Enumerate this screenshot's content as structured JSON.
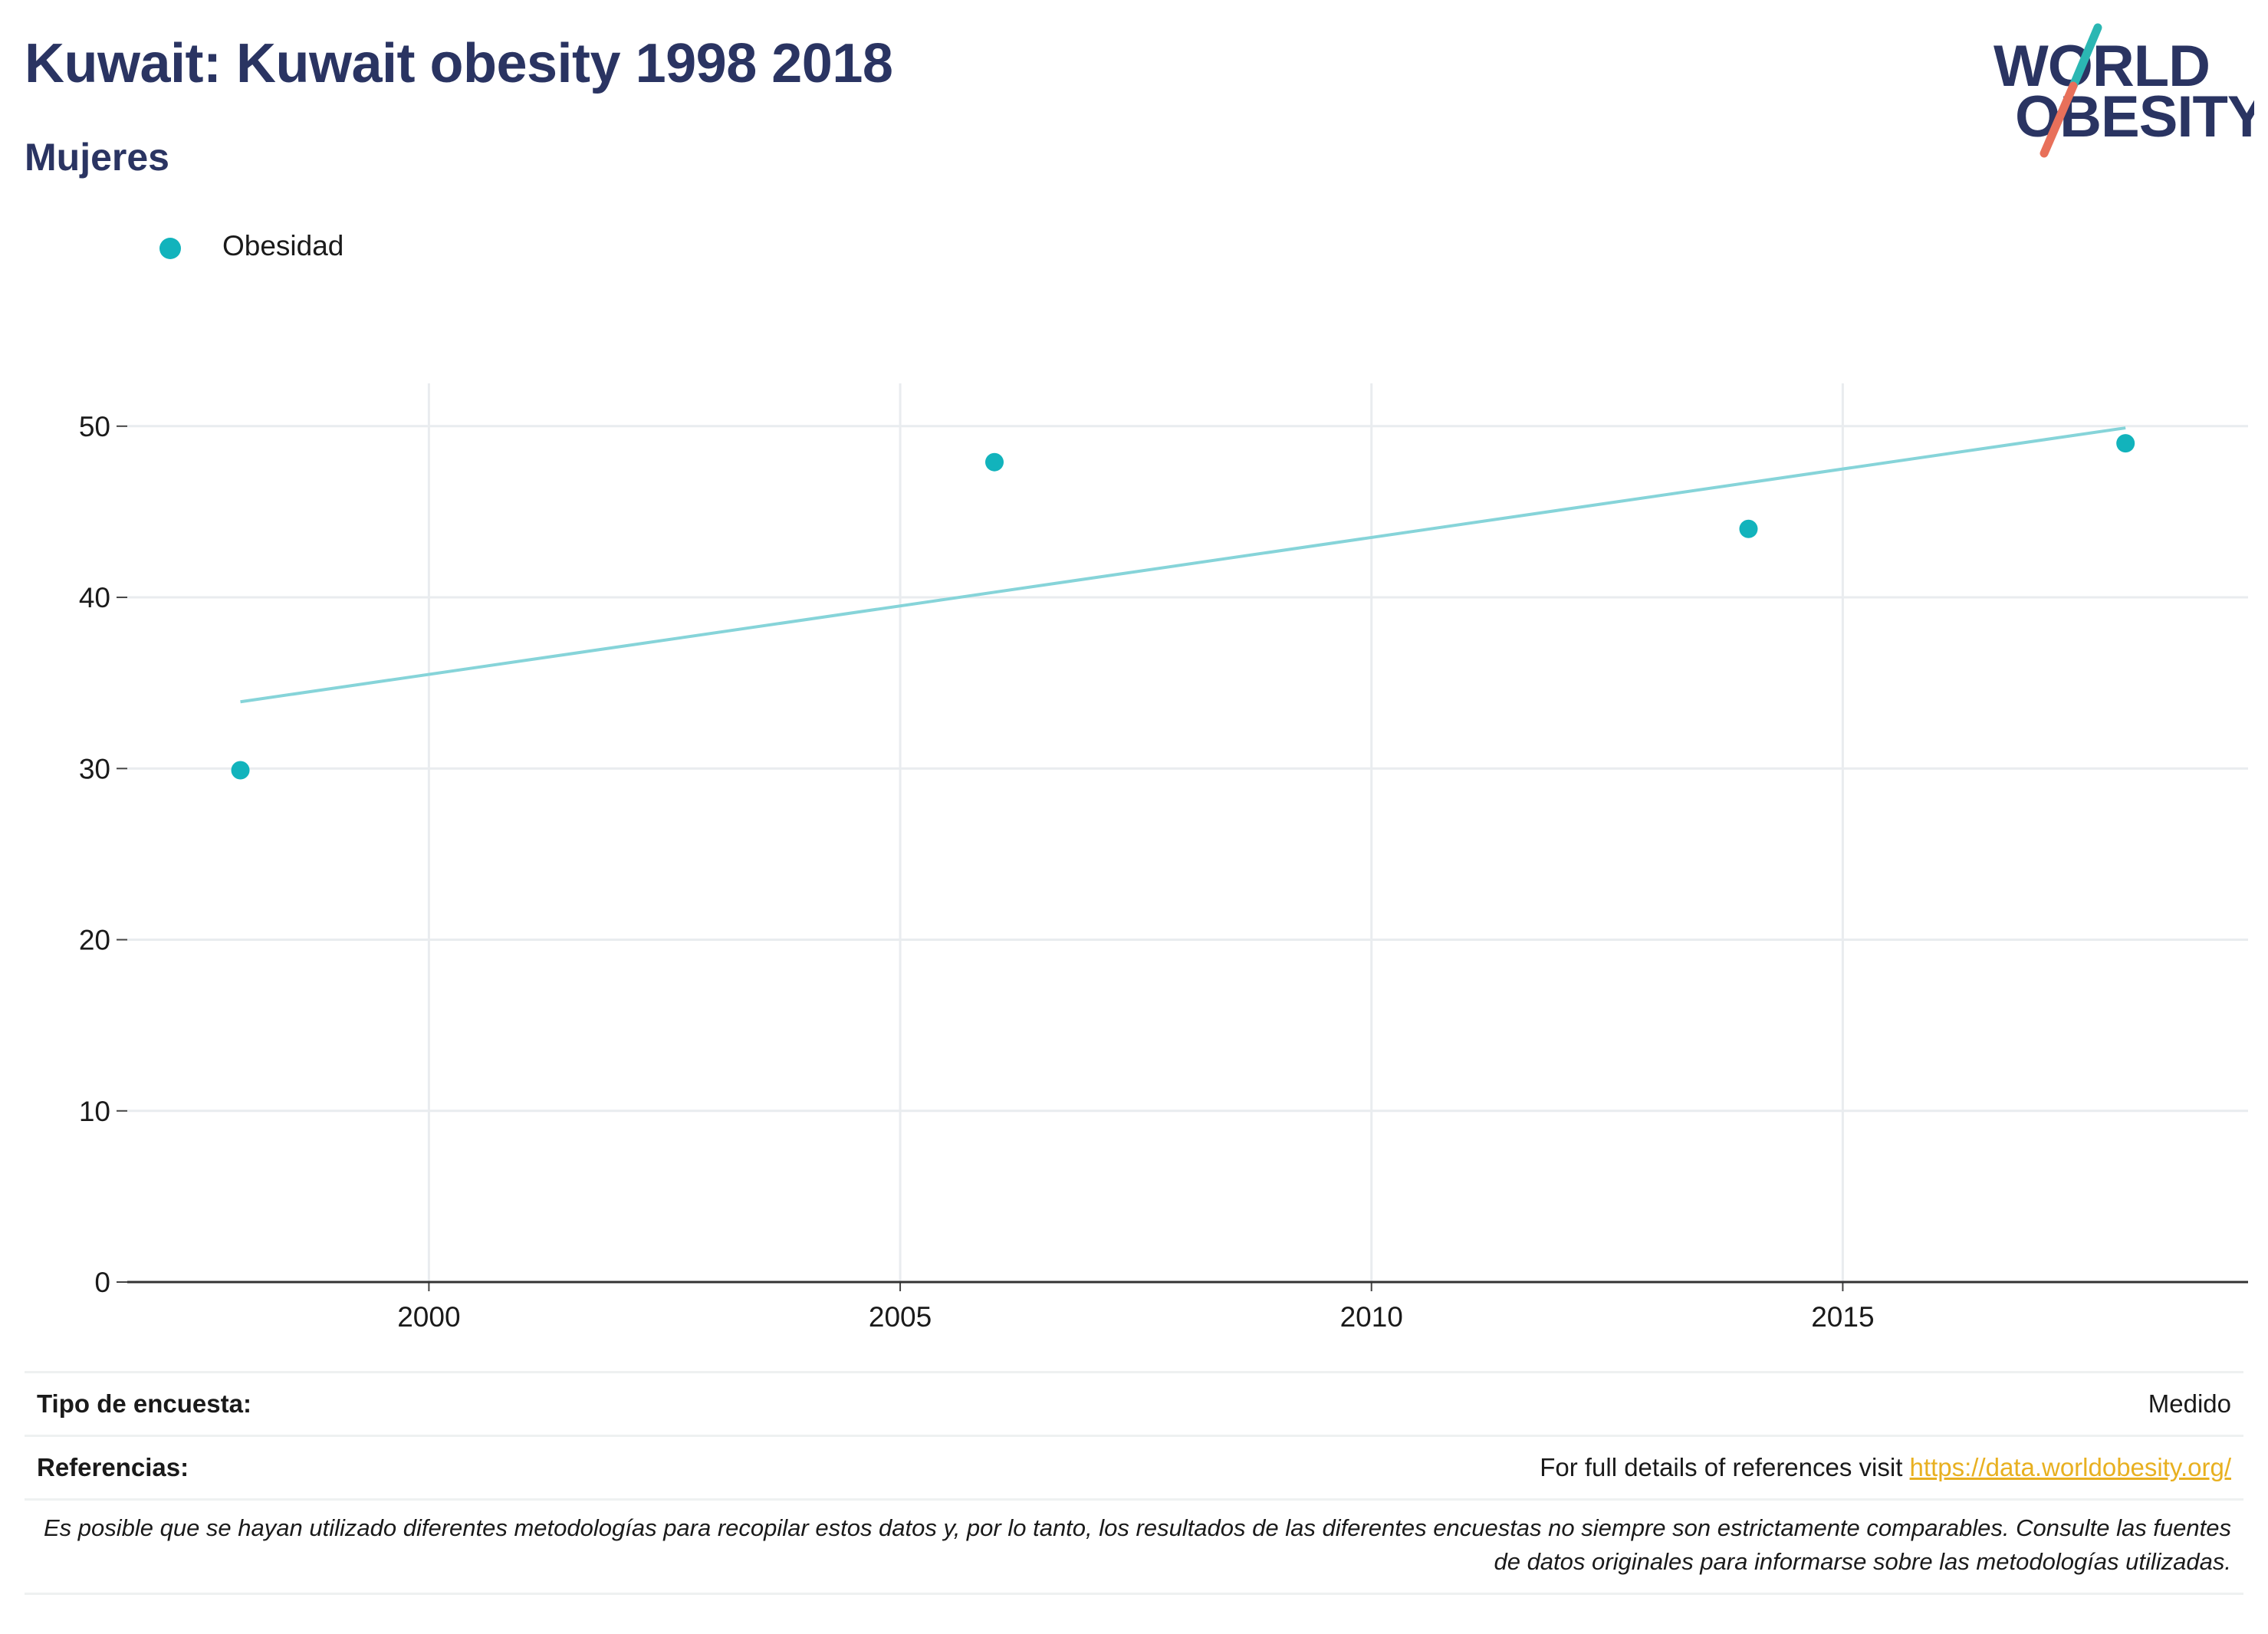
{
  "header": {
    "title": "Kuwait: Kuwait obesity 1998 2018",
    "subtitle": "Mujeres"
  },
  "logo": {
    "line1": "WORLD",
    "line2": "OBESITY",
    "accent_teal": "#2bb7b3",
    "accent_coral": "#e8705a",
    "text_color": "#2a3462"
  },
  "legend": {
    "label": "Obesidad",
    "placement": "top-left"
  },
  "chart_data": {
    "type": "scatter",
    "series": [
      {
        "name": "Obesidad",
        "color": "#12b3bc",
        "points": [
          {
            "x": 1998,
            "y": 29.9
          },
          {
            "x": 2006,
            "y": 47.9
          },
          {
            "x": 2014,
            "y": 44.0
          },
          {
            "x": 2018,
            "y": 49.0
          }
        ]
      }
    ],
    "trendline": {
      "color": "#86d4d9",
      "start": {
        "x": 1998,
        "y": 33.9
      },
      "end": {
        "x": 2018,
        "y": 49.9
      }
    },
    "xlim": [
      1996.8,
      2019.3
    ],
    "ylim": [
      0,
      52.5
    ],
    "x_ticks": [
      2000,
      2005,
      2010,
      2015
    ],
    "y_ticks": [
      0,
      10,
      20,
      30,
      40,
      50
    ],
    "grid": true,
    "title": "",
    "xlabel": "",
    "ylabel": ""
  },
  "footer": {
    "survey_type_label": "Tipo de encuesta:",
    "survey_type_value": "Medido",
    "references_label": "Referencias:",
    "references_text": "For full details of references visit ",
    "references_link": "https://data.worldobesity.org/",
    "note": "Es posible que se hayan utilizado diferentes metodologías para recopilar estos datos y, por lo tanto, los resultados de las diferentes encuestas no siempre son estrictamente comparables. Consulte las fuentes de datos originales para informarse sobre las metodologías utilizadas."
  }
}
